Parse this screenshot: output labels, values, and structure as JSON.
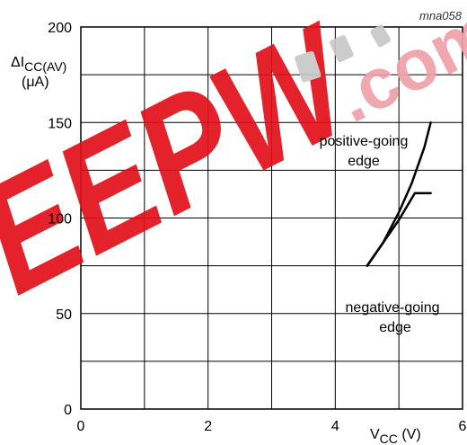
{
  "chart_data": {
    "type": "line",
    "figure_code": "mna058",
    "x": {
      "ticks": [
        0,
        2,
        4,
        6
      ],
      "range": [
        0,
        6
      ],
      "grid_step": 1
    },
    "y": {
      "ticks": [
        0,
        50,
        100,
        150,
        200
      ],
      "range": [
        0,
        200
      ],
      "grid_step": 25
    },
    "xlabel": {
      "main": "V",
      "sub": "CC",
      "unit": " (V)"
    },
    "ylabel": {
      "line1_main": "ΔI",
      "line1_sub": "CC(AV)",
      "line2": "(μA)"
    },
    "grid": true,
    "series": [
      {
        "label_lines": [
          "positive-going",
          "edge"
        ],
        "x": [
          4.5,
          4.75,
          5.0,
          5.2,
          5.4,
          5.5
        ],
        "y": [
          75,
          87,
          103,
          118,
          137,
          150
        ]
      },
      {
        "label_lines": [
          "negative-going",
          "edge"
        ],
        "x": [
          4.5,
          4.75,
          5.0,
          5.25,
          5.5
        ],
        "y": [
          75,
          87,
          99,
          113,
          113
        ]
      }
    ]
  },
  "watermark": {
    "text": "EEPW",
    "suffix": ".com",
    "colors": {
      "red": "#e2101a",
      "pink": "#f0a0a8",
      "grey": "#c8c8c8"
    }
  }
}
